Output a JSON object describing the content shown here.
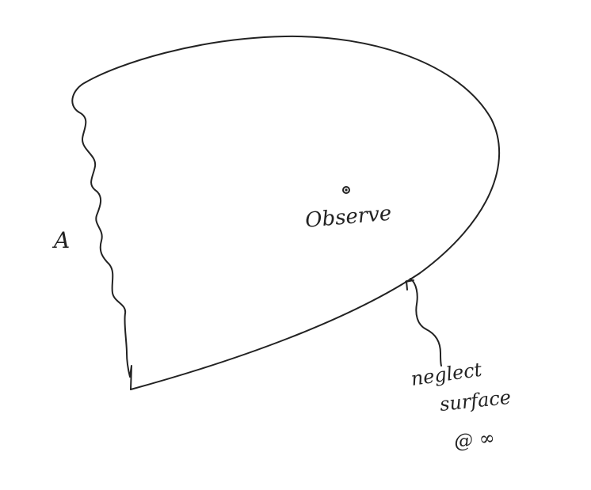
{
  "diagram": {
    "ink_color": "#222222",
    "background": "#ffffff",
    "labels": {
      "boundary_a": "A",
      "observer": "Observe",
      "neglect_line1": "neglect",
      "neglect_line2": "surface",
      "neglect_line3": "@ ∞"
    }
  }
}
